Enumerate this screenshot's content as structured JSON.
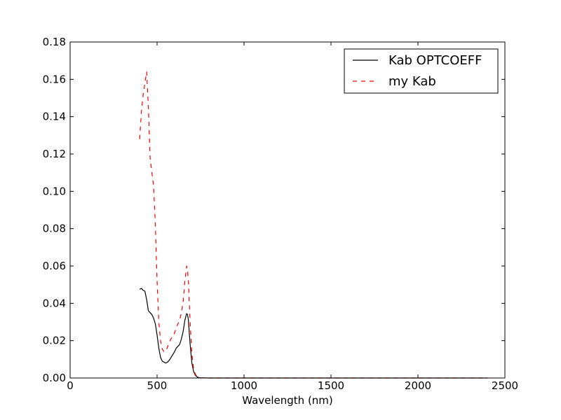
{
  "chart_data": {
    "type": "line",
    "title": "",
    "xlabel": "Wavelength (nm)",
    "ylabel": "",
    "xlim": [
      0,
      2500
    ],
    "ylim": [
      0,
      0.18
    ],
    "xticks": [
      0,
      500,
      1000,
      1500,
      2000,
      2500
    ],
    "xtick_labels": [
      "0",
      "500",
      "1000",
      "1500",
      "2000",
      "2500"
    ],
    "yticks": [
      0,
      0.02,
      0.04,
      0.06,
      0.08,
      0.1,
      0.12,
      0.14,
      0.16,
      0.18
    ],
    "ytick_labels": [
      "0.00",
      "0.02",
      "0.04",
      "0.06",
      "0.08",
      "0.10",
      "0.12",
      "0.14",
      "0.16",
      "0.18"
    ],
    "grid": false,
    "legend_position": "top-right",
    "series": [
      {
        "name": "Kab OPTCOEFF",
        "color": "#000000",
        "style": "solid",
        "x": [
          400,
          410,
          420,
          430,
          440,
          450,
          460,
          470,
          480,
          490,
          500,
          510,
          520,
          530,
          540,
          550,
          560,
          570,
          580,
          590,
          600,
          610,
          620,
          630,
          640,
          650,
          660,
          670,
          675,
          680,
          690,
          700,
          710,
          720,
          730,
          740,
          750,
          800,
          1000,
          1500,
          2000,
          2400
        ],
        "y": [
          0.0475,
          0.048,
          0.047,
          0.0465,
          0.042,
          0.036,
          0.035,
          0.034,
          0.032,
          0.029,
          0.023,
          0.016,
          0.011,
          0.009,
          0.0085,
          0.008,
          0.0085,
          0.0095,
          0.011,
          0.0125,
          0.014,
          0.016,
          0.017,
          0.018,
          0.021,
          0.025,
          0.031,
          0.0345,
          0.034,
          0.031,
          0.018,
          0.008,
          0.0035,
          0.0015,
          0.0006,
          0.0002,
          0.0001,
          0.0,
          0.0,
          0.0,
          0.0,
          0.0
        ]
      },
      {
        "name": "my Kab",
        "color": "#ff0000",
        "style": "dashed",
        "x": [
          400,
          410,
          420,
          430,
          440,
          450,
          460,
          470,
          480,
          490,
          500,
          510,
          520,
          530,
          540,
          550,
          560,
          570,
          580,
          590,
          600,
          610,
          620,
          630,
          640,
          650,
          660,
          670,
          675,
          680,
          690,
          700,
          710,
          720,
          730,
          740,
          750,
          800,
          1000,
          1500,
          2000,
          2400
        ],
        "y": [
          0.128,
          0.143,
          0.152,
          0.158,
          0.164,
          0.145,
          0.118,
          0.11,
          0.103,
          0.082,
          0.052,
          0.03,
          0.02,
          0.0155,
          0.014,
          0.0145,
          0.0165,
          0.019,
          0.021,
          0.0225,
          0.024,
          0.027,
          0.029,
          0.031,
          0.035,
          0.041,
          0.052,
          0.06,
          0.058,
          0.052,
          0.03,
          0.013,
          0.005,
          0.002,
          0.0008,
          0.0003,
          0.0001,
          0.0,
          0.0,
          0.0,
          0.0,
          0.0
        ]
      }
    ]
  }
}
